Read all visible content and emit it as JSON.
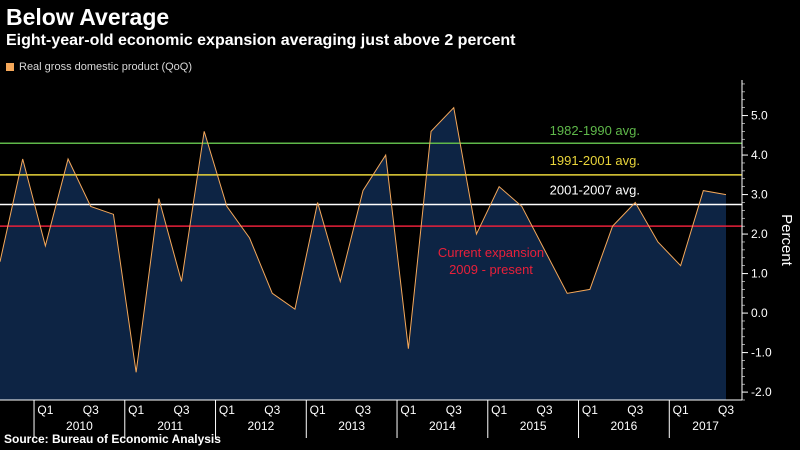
{
  "chart_data": {
    "type": "area",
    "title": "Below Average",
    "subtitle": "Eight-year-old economic expansion averaging just above 2 percent",
    "ylabel": "Percent",
    "ylim": [
      -2.2,
      5.9
    ],
    "yticks": [
      -2.0,
      -1.0,
      0.0,
      1.0,
      2.0,
      3.0,
      4.0,
      5.0
    ],
    "ytick_labels": [
      "-2.0",
      "-1.0",
      "0.0",
      "1.0",
      "2.0",
      "3.0",
      "4.0",
      "5.0"
    ],
    "grid": false,
    "legend_position": "top-left",
    "series": [
      {
        "name": "Real gross domestic product (QoQ)",
        "x": [
          "2009 Q3",
          "2009 Q4",
          "2010 Q1",
          "2010 Q2",
          "2010 Q3",
          "2010 Q4",
          "2011 Q1",
          "2011 Q2",
          "2011 Q3",
          "2011 Q4",
          "2012 Q1",
          "2012 Q2",
          "2012 Q3",
          "2012 Q4",
          "2013 Q1",
          "2013 Q2",
          "2013 Q3",
          "2013 Q4",
          "2014 Q1",
          "2014 Q2",
          "2014 Q3",
          "2014 Q4",
          "2015 Q1",
          "2015 Q2",
          "2015 Q3",
          "2015 Q4",
          "2016 Q1",
          "2016 Q2",
          "2016 Q3",
          "2016 Q4",
          "2017 Q1",
          "2017 Q2",
          "2017 Q3"
        ],
        "values": [
          1.3,
          3.9,
          1.7,
          3.9,
          2.7,
          2.5,
          -1.5,
          2.9,
          0.8,
          4.6,
          2.7,
          1.9,
          0.5,
          0.1,
          2.8,
          0.8,
          3.1,
          4.0,
          -0.9,
          4.6,
          5.2,
          2.0,
          3.2,
          2.7,
          1.6,
          0.5,
          0.6,
          2.2,
          2.8,
          1.8,
          1.2,
          3.1,
          3.0
        ]
      }
    ],
    "reference_lines": [
      {
        "label": "1982-1990 avg.",
        "value": 4.3,
        "color": "#5fb84a"
      },
      {
        "label": "1991-2001 avg.",
        "value": 3.5,
        "color": "#e8d43a"
      },
      {
        "label": "2001-2007 avg.",
        "value": 2.75,
        "color": "#ffffff"
      },
      {
        "label": "Current expansion\n2009 - present",
        "value": 2.2,
        "color": "#e8203a"
      }
    ],
    "annotation_current": {
      "line1": "Current expansion",
      "line2": "2009 - present"
    },
    "quarter_labels": [
      "Q1",
      "Q3"
    ],
    "years": [
      "2010",
      "2011",
      "2012",
      "2013",
      "2014",
      "2015",
      "2016",
      "2017"
    ],
    "colors": {
      "line": "#f5a85a",
      "fill": "#0d2444",
      "axis": "#ffffff",
      "background": "#000000"
    }
  },
  "source": "Source: Bureau of Economic Analysis"
}
